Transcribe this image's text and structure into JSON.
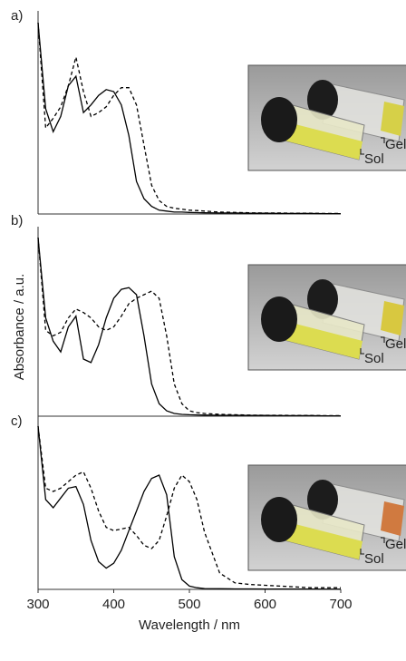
{
  "chart_data": [
    {
      "type": "line",
      "label": "a)",
      "xlim": [
        300,
        700
      ],
      "ylim": [
        0,
        1
      ],
      "x": [
        300,
        310,
        320,
        330,
        340,
        350,
        360,
        370,
        380,
        390,
        400,
        410,
        420,
        430,
        440,
        450,
        460,
        470,
        480,
        490,
        500,
        510,
        520,
        540,
        560,
        580,
        600,
        620,
        640,
        660,
        680,
        700
      ],
      "series": [
        {
          "color": "#000000",
          "style": "solid",
          "values": [
            1.0,
            0.55,
            0.43,
            0.51,
            0.67,
            0.72,
            0.53,
            0.57,
            0.62,
            0.65,
            0.64,
            0.57,
            0.41,
            0.17,
            0.08,
            0.04,
            0.02,
            0.015,
            0.01,
            0.01,
            0.008,
            0.007,
            0.006,
            0.005,
            0.005,
            0.004,
            0.004,
            0.003,
            0.003,
            0.003,
            0.002,
            0.002
          ]
        },
        {
          "color": "#000000",
          "style": "dashed",
          "values": [
            1.0,
            0.45,
            0.5,
            0.56,
            0.67,
            0.82,
            0.64,
            0.51,
            0.53,
            0.56,
            0.62,
            0.66,
            0.66,
            0.57,
            0.36,
            0.15,
            0.07,
            0.04,
            0.03,
            0.025,
            0.02,
            0.018,
            0.015,
            0.01,
            0.008,
            0.006,
            0.005,
            0.005,
            0.004,
            0.004,
            0.003,
            0.003
          ]
        }
      ],
      "annotations": [
        "Gel",
        "Sol"
      ],
      "gel_color": "#d6d048"
    },
    {
      "type": "line",
      "label": "b)",
      "y_label": "Absorbance / a.u.",
      "xlim": [
        300,
        700
      ],
      "ylim": [
        0,
        1
      ],
      "x": [
        300,
        310,
        320,
        330,
        340,
        350,
        360,
        370,
        380,
        390,
        400,
        410,
        420,
        430,
        440,
        450,
        460,
        470,
        480,
        490,
        500,
        510,
        520,
        540,
        560,
        580,
        600,
        620,
        640,
        660,
        680,
        700
      ],
      "series": [
        {
          "color": "#000000",
          "style": "solid",
          "values": [
            1.0,
            0.55,
            0.42,
            0.36,
            0.5,
            0.56,
            0.32,
            0.3,
            0.4,
            0.55,
            0.66,
            0.71,
            0.72,
            0.68,
            0.45,
            0.18,
            0.07,
            0.03,
            0.015,
            0.01,
            0.008,
            0.007,
            0.006,
            0.005,
            0.005,
            0.004,
            0.004,
            0.003,
            0.003,
            0.003,
            0.002,
            0.002
          ]
        },
        {
          "color": "#000000",
          "style": "dashed",
          "values": [
            1.0,
            0.48,
            0.45,
            0.47,
            0.55,
            0.6,
            0.58,
            0.55,
            0.5,
            0.48,
            0.5,
            0.56,
            0.63,
            0.66,
            0.68,
            0.7,
            0.66,
            0.45,
            0.18,
            0.07,
            0.03,
            0.02,
            0.015,
            0.01,
            0.008,
            0.006,
            0.005,
            0.005,
            0.004,
            0.004,
            0.003,
            0.003
          ]
        }
      ],
      "annotations": [
        "Gel",
        "Sol"
      ],
      "gel_color": "#d8c840"
    },
    {
      "type": "line",
      "label": "c)",
      "x_label": "Wavelength / nm",
      "xlim": [
        300,
        700
      ],
      "ylim": [
        0,
        1
      ],
      "xticks": [
        300,
        400,
        500,
        600,
        700
      ],
      "x": [
        300,
        310,
        320,
        330,
        340,
        350,
        360,
        370,
        380,
        390,
        400,
        410,
        420,
        430,
        440,
        450,
        460,
        470,
        480,
        490,
        500,
        510,
        520,
        540,
        560,
        580,
        600,
        620,
        640,
        660,
        680,
        700
      ],
      "series": [
        {
          "color": "#000000",
          "style": "solid",
          "values": [
            1.0,
            0.55,
            0.5,
            0.56,
            0.62,
            0.63,
            0.52,
            0.3,
            0.17,
            0.13,
            0.16,
            0.24,
            0.36,
            0.48,
            0.6,
            0.68,
            0.7,
            0.58,
            0.2,
            0.06,
            0.02,
            0.01,
            0.005,
            0.004,
            0.003,
            0.003,
            0.002,
            0.002,
            0.002,
            0.002,
            0.001,
            0.001
          ]
        },
        {
          "color": "#000000",
          "style": "dashed",
          "values": [
            1.0,
            0.62,
            0.6,
            0.62,
            0.66,
            0.7,
            0.72,
            0.62,
            0.48,
            0.38,
            0.36,
            0.37,
            0.38,
            0.33,
            0.27,
            0.25,
            0.3,
            0.45,
            0.62,
            0.7,
            0.66,
            0.55,
            0.35,
            0.1,
            0.04,
            0.03,
            0.025,
            0.02,
            0.015,
            0.01,
            0.01,
            0.01
          ]
        }
      ],
      "annotations": [
        "Gel",
        "Sol"
      ],
      "gel_color": "#d07a40"
    }
  ]
}
